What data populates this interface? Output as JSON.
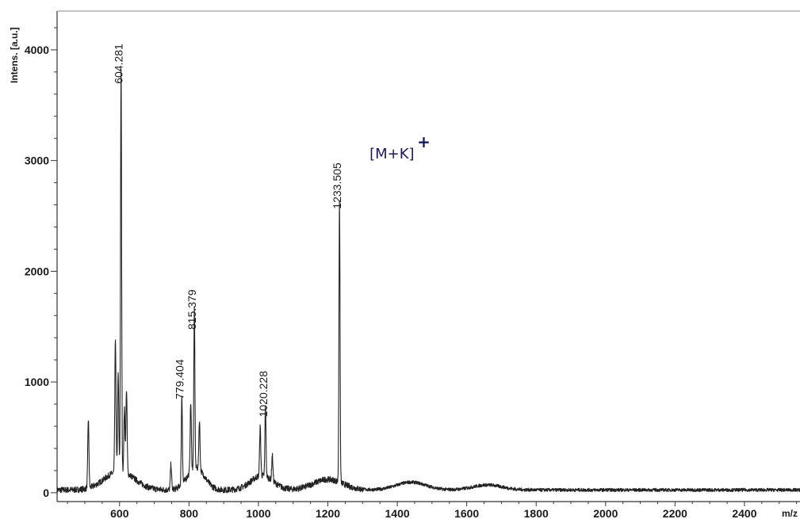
{
  "chart_data": {
    "type": "line",
    "title": "",
    "ylabel": "Intens. [a.u.]",
    "xlabel": "m/z",
    "xlim": [
      420,
      2560
    ],
    "ylim": [
      -80,
      4350
    ],
    "x_ticks": [
      600,
      800,
      1000,
      1200,
      1400,
      1600,
      1800,
      2000,
      2200,
      2400
    ],
    "y_ticks": [
      0,
      1000,
      2000,
      3000,
      4000
    ],
    "grid": false,
    "annotation": {
      "text": "[M+K]",
      "superscript": "+",
      "x": 1320,
      "y": 3020
    },
    "peaks": [
      {
        "x": 604.281,
        "y": 3650,
        "label": "604.281"
      },
      {
        "x": 779.404,
        "y": 800,
        "label": "779.404"
      },
      {
        "x": 815.379,
        "y": 1430,
        "label": "815.379"
      },
      {
        "x": 1020.228,
        "y": 640,
        "label": "1020.228"
      },
      {
        "x": 1233.505,
        "y": 2520,
        "label": "1233.505"
      }
    ],
    "minor_peaks": [
      {
        "x": 510,
        "y": 620
      },
      {
        "x": 588,
        "y": 1200
      },
      {
        "x": 596,
        "y": 880
      },
      {
        "x": 614,
        "y": 580
      },
      {
        "x": 620,
        "y": 760
      },
      {
        "x": 748,
        "y": 230
      },
      {
        "x": 805,
        "y": 620
      },
      {
        "x": 830,
        "y": 440
      },
      {
        "x": 1005,
        "y": 440
      },
      {
        "x": 1040,
        "y": 230
      }
    ],
    "baseline_humps": [
      {
        "x": 600,
        "y": 170,
        "w": 60
      },
      {
        "x": 820,
        "y": 200,
        "w": 35
      },
      {
        "x": 1010,
        "y": 130,
        "w": 45
      },
      {
        "x": 1200,
        "y": 95,
        "w": 60
      },
      {
        "x": 1440,
        "y": 70,
        "w": 60
      },
      {
        "x": 1660,
        "y": 45,
        "w": 60
      }
    ]
  }
}
